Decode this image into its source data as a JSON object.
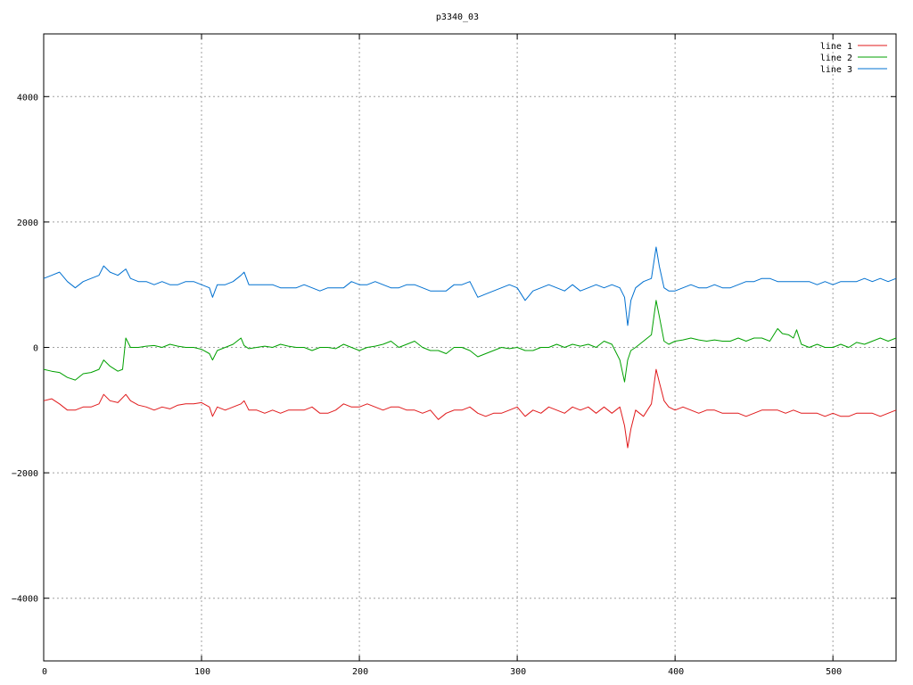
{
  "chart_data": {
    "type": "line",
    "title": "p3340_03",
    "xlabel": "",
    "ylabel": "",
    "xlim": [
      0,
      540
    ],
    "ylim": [
      -5000,
      5000
    ],
    "xticks": [
      0,
      100,
      200,
      300,
      400,
      500
    ],
    "yticks": [
      -4000,
      -2000,
      0,
      2000,
      4000
    ],
    "ytick_labels": [
      "−4000",
      "−2000",
      "0",
      "2000",
      "4000"
    ],
    "grid": true,
    "legend_position": "top-right",
    "series": [
      {
        "name": "line 1",
        "color": "#e0191b",
        "x": [
          0,
          5,
          10,
          15,
          20,
          25,
          30,
          35,
          38,
          42,
          47,
          52,
          55,
          60,
          65,
          70,
          75,
          80,
          85,
          90,
          95,
          100,
          105,
          107,
          110,
          115,
          120,
          125,
          127,
          130,
          135,
          140,
          145,
          150,
          155,
          160,
          165,
          170,
          175,
          180,
          185,
          190,
          195,
          200,
          205,
          210,
          215,
          220,
          225,
          230,
          235,
          240,
          245,
          250,
          255,
          260,
          265,
          270,
          275,
          280,
          285,
          290,
          295,
          300,
          305,
          310,
          315,
          320,
          325,
          330,
          335,
          340,
          345,
          350,
          355,
          360,
          365,
          368,
          370,
          372,
          375,
          380,
          385,
          388,
          390,
          393,
          396,
          400,
          405,
          410,
          415,
          420,
          425,
          430,
          435,
          440,
          445,
          450,
          455,
          460,
          465,
          470,
          475,
          480,
          485,
          490,
          495,
          500,
          505,
          510,
          515,
          520,
          525,
          530,
          535,
          540
        ],
        "values": [
          -850,
          -820,
          -900,
          -1000,
          -1000,
          -950,
          -950,
          -900,
          -750,
          -850,
          -880,
          -750,
          -850,
          -920,
          -950,
          -1000,
          -950,
          -980,
          -920,
          -900,
          -900,
          -880,
          -950,
          -1100,
          -950,
          -1000,
          -950,
          -900,
          -850,
          -1000,
          -1000,
          -1050,
          -1000,
          -1050,
          -1000,
          -1000,
          -1000,
          -950,
          -1050,
          -1050,
          -1000,
          -900,
          -950,
          -950,
          -900,
          -950,
          -1000,
          -950,
          -950,
          -1000,
          -1000,
          -1050,
          -1000,
          -1150,
          -1050,
          -1000,
          -1000,
          -950,
          -1050,
          -1100,
          -1050,
          -1050,
          -1000,
          -950,
          -1100,
          -1000,
          -1050,
          -950,
          -1000,
          -1050,
          -950,
          -1000,
          -950,
          -1050,
          -950,
          -1050,
          -950,
          -1250,
          -1600,
          -1300,
          -1000,
          -1100,
          -900,
          -350,
          -550,
          -850,
          -950,
          -1000,
          -950,
          -1000,
          -1050,
          -1000,
          -1000,
          -1050,
          -1050,
          -1050,
          -1100,
          -1050,
          -1000,
          -1000,
          -1000,
          -1050,
          -1000,
          -1050,
          -1050,
          -1050,
          -1100,
          -1050,
          -1100,
          -1100,
          -1050,
          -1050,
          -1050,
          -1100,
          -1050,
          -1000
        ]
      },
      {
        "name": "line 2",
        "color": "#00a000",
        "x": [
          0,
          5,
          10,
          15,
          20,
          25,
          30,
          35,
          38,
          42,
          47,
          50,
          52,
          55,
          60,
          65,
          70,
          75,
          80,
          85,
          90,
          95,
          100,
          105,
          107,
          110,
          115,
          120,
          125,
          127,
          130,
          135,
          140,
          145,
          150,
          155,
          160,
          165,
          170,
          175,
          180,
          185,
          190,
          195,
          200,
          205,
          210,
          215,
          220,
          225,
          230,
          235,
          240,
          245,
          250,
          255,
          260,
          265,
          270,
          275,
          280,
          285,
          290,
          295,
          300,
          305,
          310,
          315,
          320,
          325,
          330,
          335,
          340,
          345,
          350,
          355,
          360,
          365,
          368,
          370,
          372,
          375,
          380,
          385,
          388,
          390,
          393,
          396,
          400,
          405,
          410,
          415,
          420,
          425,
          430,
          435,
          440,
          445,
          450,
          455,
          460,
          465,
          468,
          472,
          475,
          477,
          480,
          485,
          490,
          495,
          500,
          505,
          510,
          515,
          520,
          525,
          530,
          535,
          540
        ],
        "values": [
          -350,
          -380,
          -400,
          -480,
          -520,
          -420,
          -400,
          -350,
          -200,
          -300,
          -380,
          -350,
          150,
          0,
          0,
          20,
          30,
          0,
          50,
          20,
          0,
          0,
          -30,
          -100,
          -200,
          -50,
          0,
          50,
          150,
          30,
          -20,
          0,
          20,
          0,
          50,
          20,
          0,
          0,
          -50,
          0,
          0,
          -20,
          50,
          0,
          -50,
          0,
          20,
          50,
          100,
          0,
          50,
          100,
          0,
          -50,
          -50,
          -100,
          0,
          0,
          -50,
          -150,
          -100,
          -50,
          0,
          -20,
          0,
          -50,
          -50,
          0,
          0,
          50,
          0,
          50,
          20,
          50,
          0,
          100,
          50,
          -200,
          -550,
          -200,
          -50,
          0,
          100,
          200,
          750,
          500,
          100,
          50,
          100,
          120,
          150,
          120,
          100,
          120,
          100,
          100,
          150,
          100,
          150,
          150,
          100,
          300,
          220,
          200,
          150,
          280,
          50,
          0,
          50,
          0,
          0,
          50,
          0,
          80,
          50,
          100,
          150,
          100,
          150
        ]
      },
      {
        "name": "line 3",
        "color": "#0070d0",
        "x": [
          0,
          5,
          10,
          15,
          20,
          25,
          30,
          35,
          38,
          42,
          47,
          52,
          55,
          60,
          65,
          70,
          75,
          80,
          85,
          90,
          95,
          100,
          105,
          107,
          110,
          115,
          120,
          125,
          127,
          130,
          135,
          140,
          145,
          150,
          155,
          160,
          165,
          170,
          175,
          180,
          185,
          190,
          195,
          200,
          205,
          210,
          215,
          220,
          225,
          230,
          235,
          240,
          245,
          250,
          255,
          260,
          265,
          270,
          275,
          280,
          285,
          290,
          295,
          300,
          305,
          310,
          315,
          320,
          325,
          330,
          335,
          340,
          345,
          350,
          355,
          360,
          365,
          368,
          370,
          372,
          375,
          380,
          385,
          388,
          390,
          393,
          396,
          400,
          405,
          410,
          415,
          420,
          425,
          430,
          435,
          440,
          445,
          450,
          455,
          460,
          465,
          470,
          475,
          480,
          485,
          490,
          495,
          500,
          505,
          510,
          515,
          520,
          525,
          530,
          535,
          540
        ],
        "values": [
          1100,
          1150,
          1200,
          1050,
          950,
          1050,
          1100,
          1150,
          1300,
          1200,
          1150,
          1250,
          1100,
          1050,
          1050,
          1000,
          1050,
          1000,
          1000,
          1050,
          1050,
          1000,
          950,
          800,
          1000,
          1000,
          1050,
          1150,
          1200,
          1000,
          1000,
          1000,
          1000,
          950,
          950,
          950,
          1000,
          950,
          900,
          950,
          950,
          950,
          1050,
          1000,
          1000,
          1050,
          1000,
          950,
          950,
          1000,
          1000,
          950,
          900,
          900,
          900,
          1000,
          1000,
          1050,
          800,
          850,
          900,
          950,
          1000,
          950,
          750,
          900,
          950,
          1000,
          950,
          900,
          1000,
          900,
          950,
          1000,
          950,
          1000,
          950,
          800,
          350,
          750,
          950,
          1050,
          1100,
          1600,
          1300,
          950,
          900,
          900,
          950,
          1000,
          950,
          950,
          1000,
          950,
          950,
          1000,
          1050,
          1050,
          1100,
          1100,
          1050,
          1050,
          1050,
          1050,
          1050,
          1000,
          1050,
          1000,
          1050,
          1050,
          1050,
          1100,
          1050,
          1100,
          1050,
          1100
        ]
      }
    ]
  }
}
